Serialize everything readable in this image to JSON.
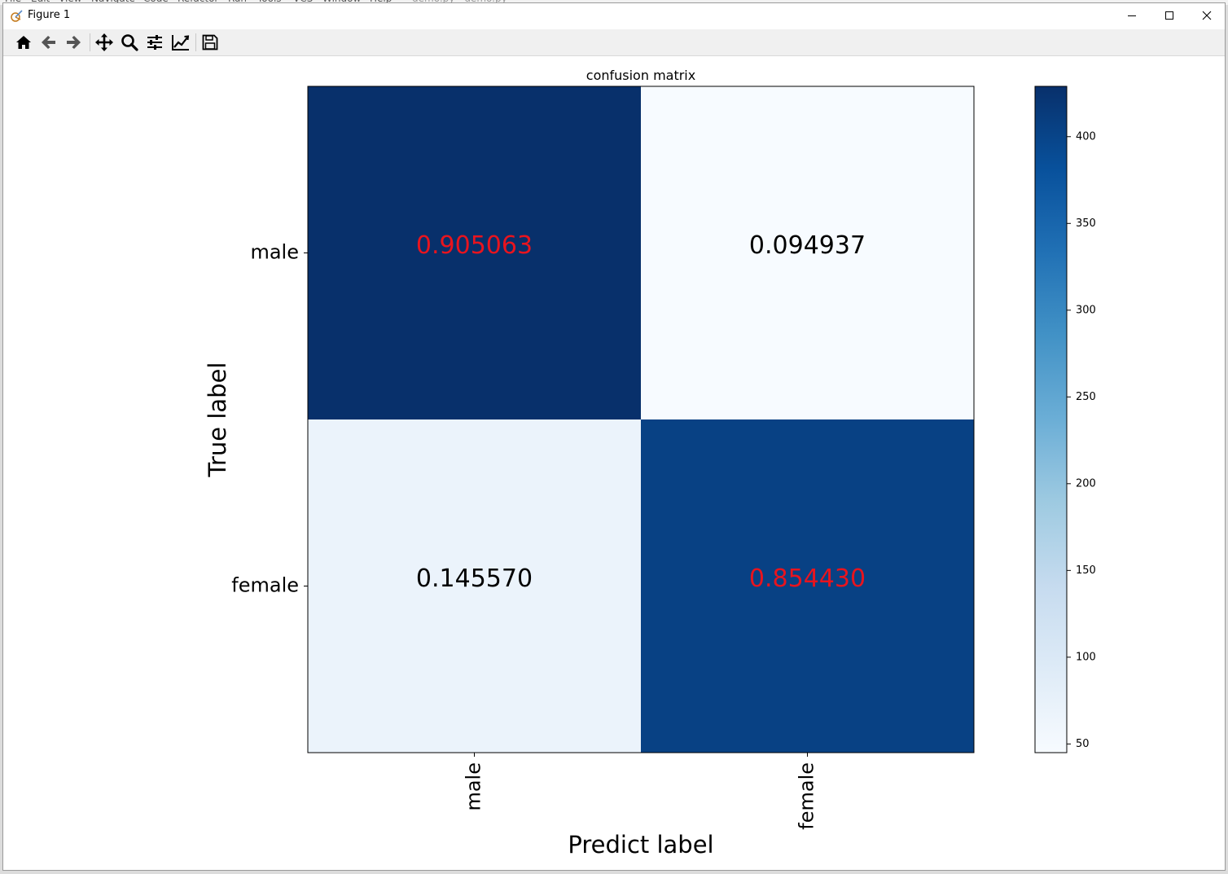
{
  "window": {
    "title": "Figure 1",
    "behind_menu": [
      "File",
      "Edit",
      "View",
      "Navigate",
      "Code",
      "Refactor",
      "Run",
      "Tools",
      "VCS",
      "Window",
      "Help",
      "demo.py - demo.py"
    ]
  },
  "toolbar": {
    "buttons": [
      {
        "name": "home-button",
        "icon": "home-icon"
      },
      {
        "name": "back-button",
        "icon": "arrow-left-icon"
      },
      {
        "name": "forward-button",
        "icon": "arrow-right-icon"
      },
      {
        "name": "pan-button",
        "icon": "move-icon"
      },
      {
        "name": "zoom-button",
        "icon": "magnifier-icon"
      },
      {
        "name": "configure-subplots-button",
        "icon": "sliders-icon"
      },
      {
        "name": "edit-axis-button",
        "icon": "line-chart-icon"
      },
      {
        "name": "save-button",
        "icon": "floppy-disk-icon"
      }
    ]
  },
  "chart_data": {
    "type": "heatmap",
    "title": "confusion matrix",
    "xlabel": "Predict label",
    "ylabel": "True label",
    "x_categories": [
      "male",
      "female"
    ],
    "y_categories": [
      "male",
      "female"
    ],
    "cell_labels": [
      [
        "0.905063",
        "0.094937"
      ],
      [
        "0.145570",
        "0.854430"
      ]
    ],
    "values": [
      [
        0.905063,
        0.094937
      ],
      [
        0.14557,
        0.85443
      ]
    ],
    "color_values": [
      [
        429,
        45
      ],
      [
        69,
        405
      ]
    ],
    "highlight_diagonal_color": "#e8141e",
    "off_diagonal_text_color": "#000000",
    "colormap": "Blues",
    "colorbar": {
      "min": 45,
      "max": 429,
      "ticks": [
        50,
        100,
        150,
        200,
        250,
        300,
        350,
        400
      ]
    }
  }
}
